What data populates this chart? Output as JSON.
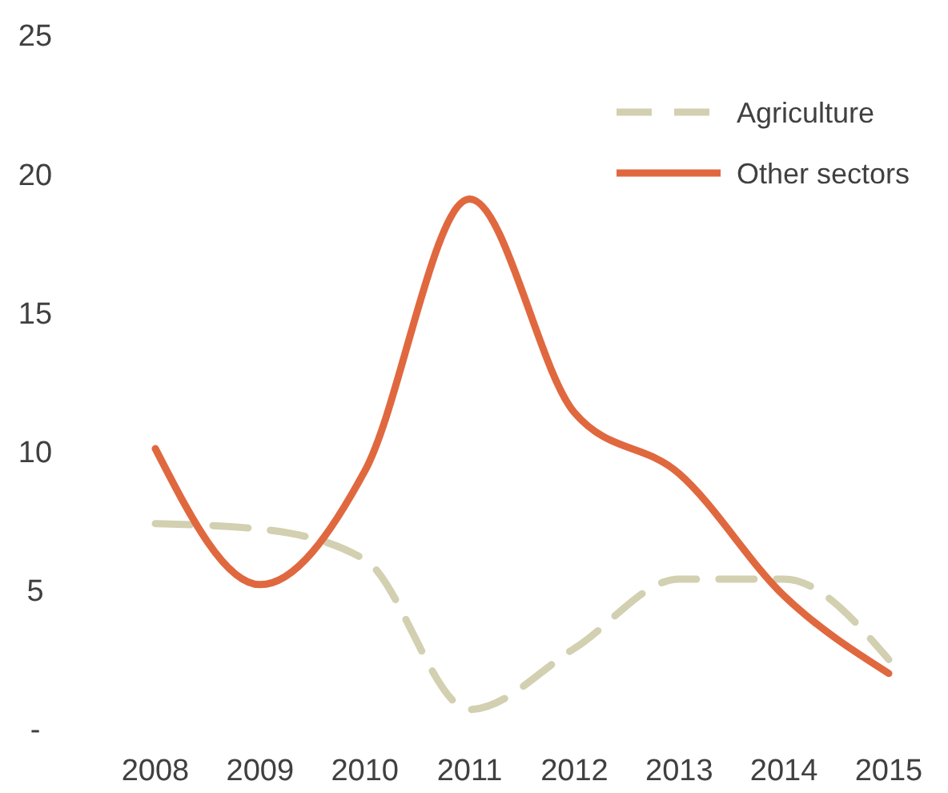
{
  "chart_data": {
    "type": "line",
    "categories": [
      "2008",
      "2009",
      "2010",
      "2011",
      "2012",
      "2013",
      "2014",
      "2015"
    ],
    "series": [
      {
        "name": "Agriculture",
        "color": "#d3d0b1",
        "line_style": "dashed",
        "values": [
          7.4,
          7.2,
          6.1,
          0.7,
          2.9,
          5.4,
          5.4,
          2.5
        ]
      },
      {
        "name": "Other sectors",
        "color": "#e0683f",
        "line_style": "solid",
        "values": [
          10.1,
          5.2,
          9.3,
          19.1,
          11.4,
          9.2,
          4.8,
          2.0
        ]
      }
    ],
    "ylim": [
      0,
      25
    ],
    "yticks": [
      {
        "value": 0,
        "label": "-"
      },
      5,
      10,
      15,
      20,
      25
    ],
    "grid": false,
    "legend": "top right"
  }
}
